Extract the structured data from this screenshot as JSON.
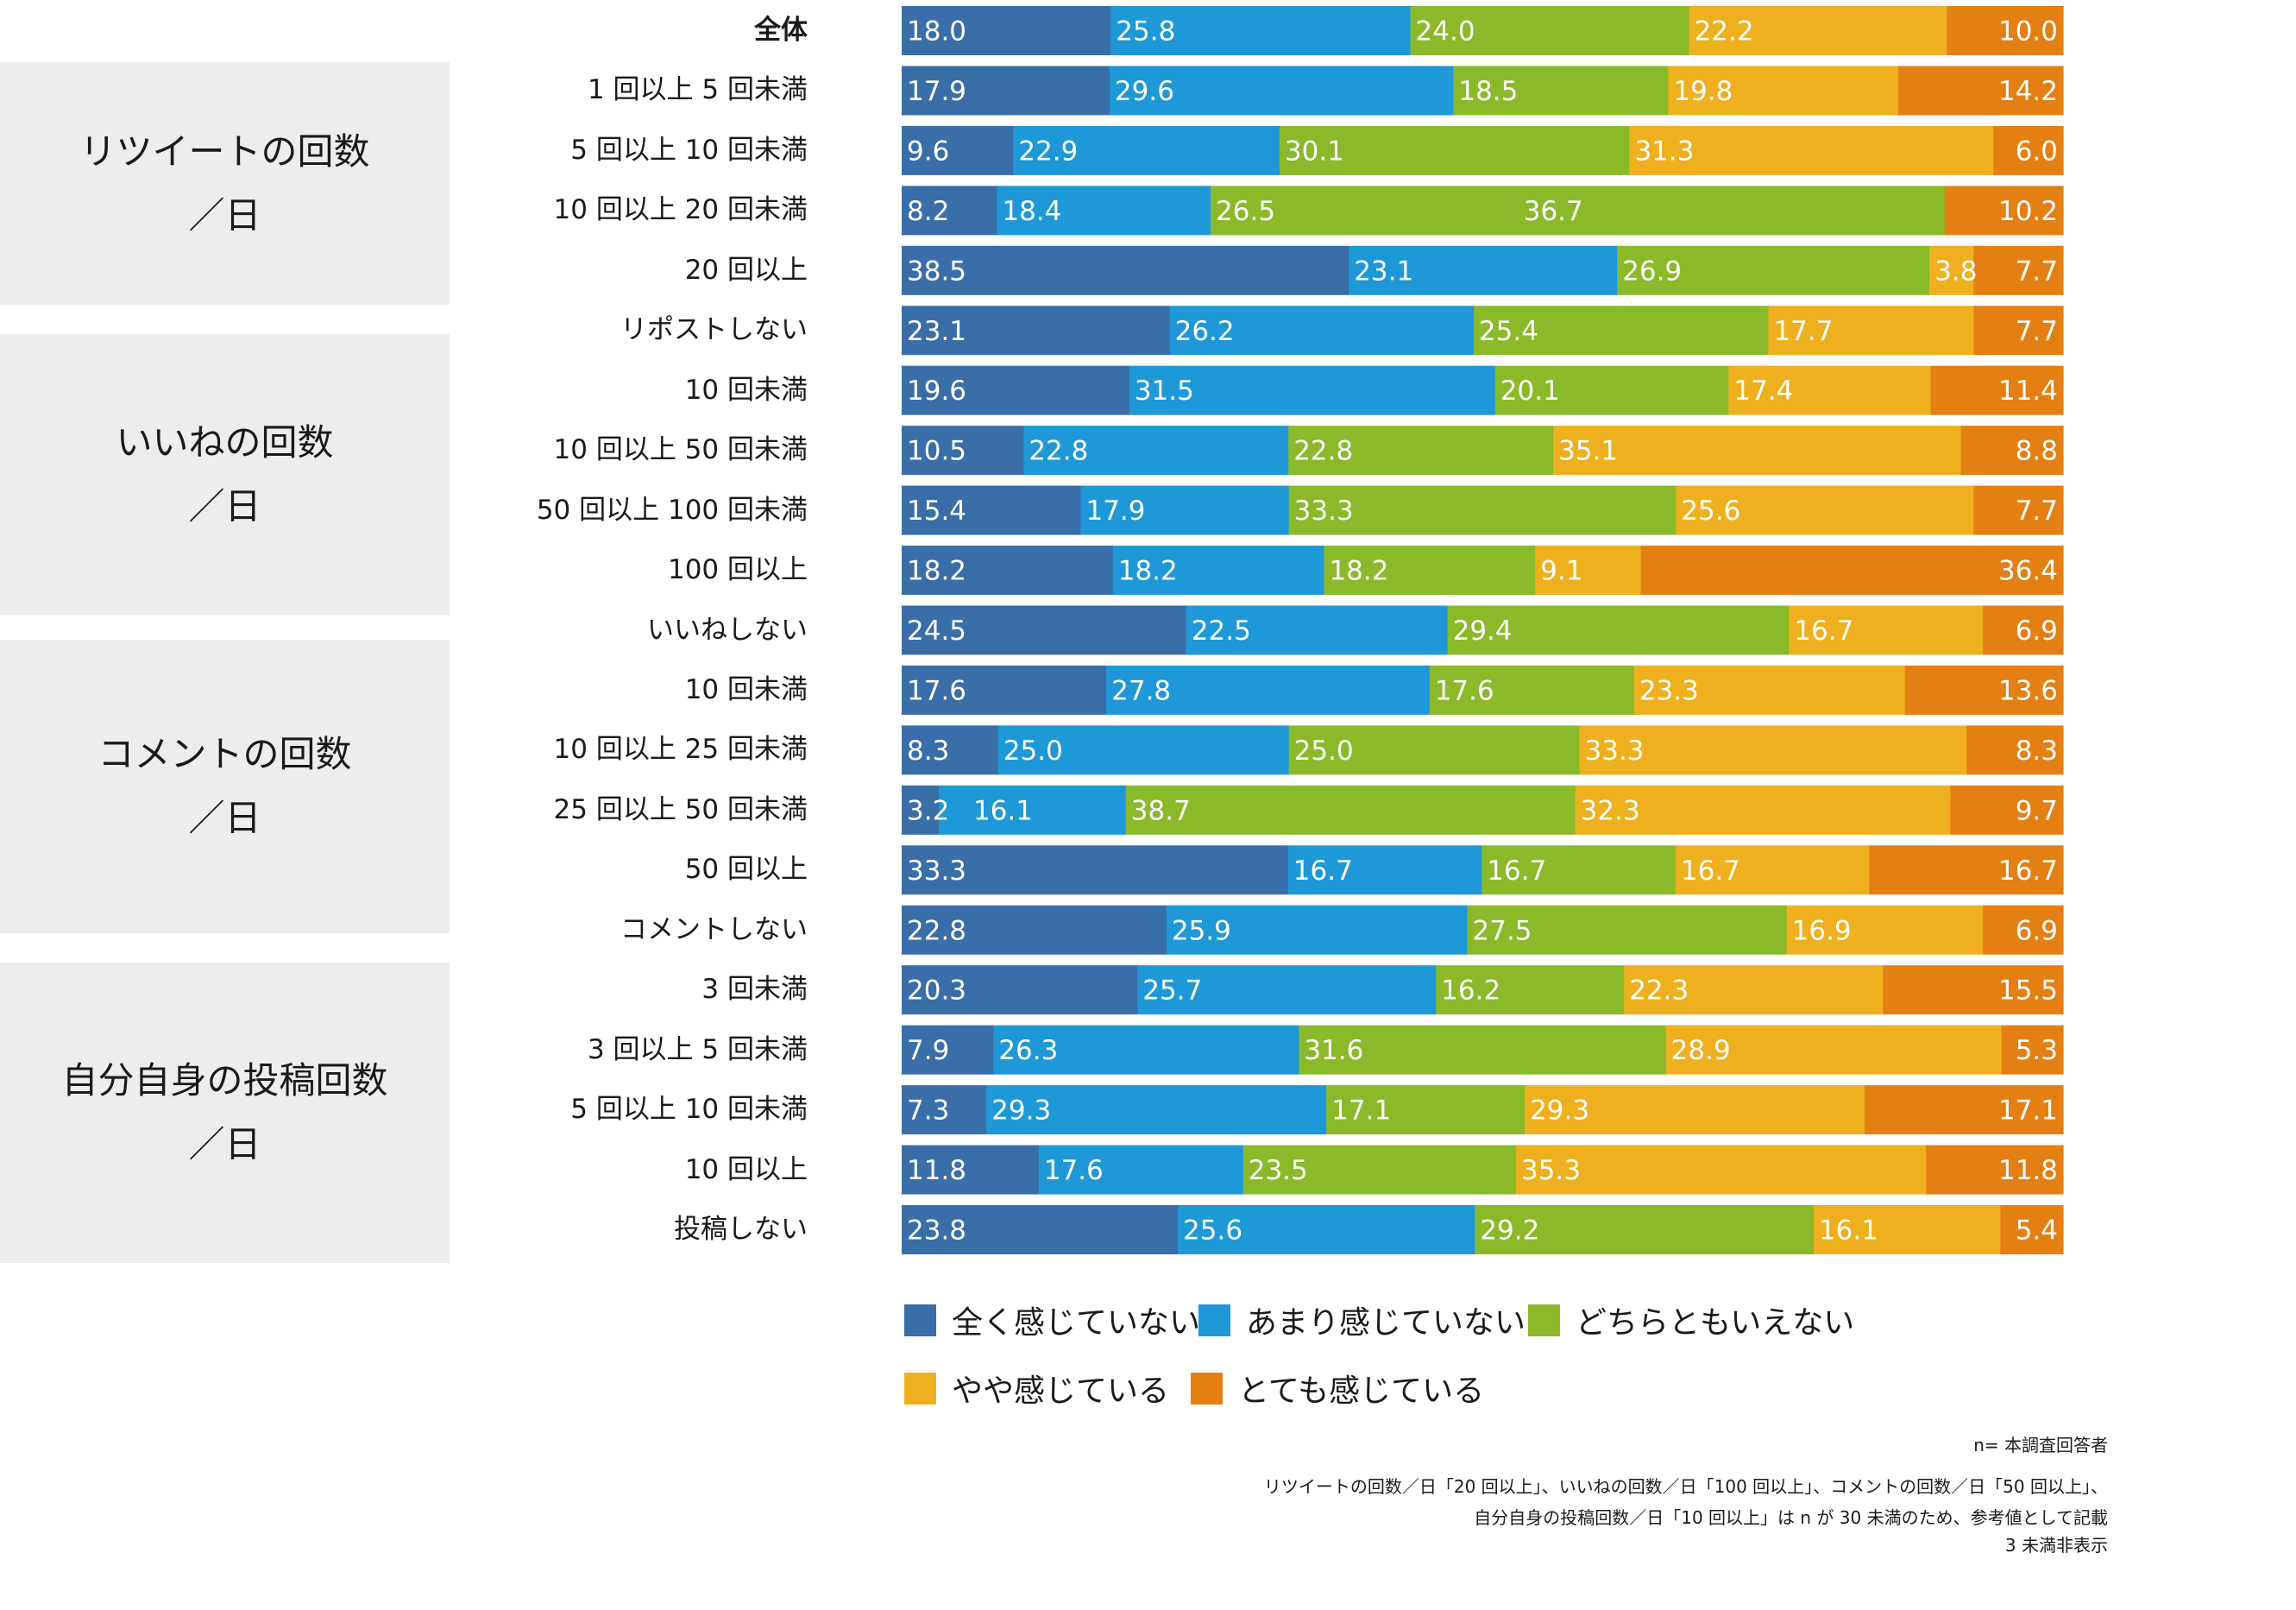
{
  "chart_data": {
    "type": "bar",
    "orientation": "horizontal",
    "stacked": true,
    "xlim": [
      0,
      100
    ],
    "categories": [
      "全体",
      "1 回以上 5 回未満",
      "5 回以上 10 回未満",
      "10 回以上 20 回未満",
      "20 回以上",
      "リポストしない",
      "10 回未満",
      "10 回以上 50 回未満",
      "50 回以上 100 回未満",
      "100 回以上",
      "いいねしない",
      "10 回未満",
      "10 回以上 25 回未満",
      "25 回以上 50 回未満",
      "50 回以上",
      "コメントしない",
      "3 回未満",
      "3 回以上 5 回未満",
      "5 回以上 10 回未満",
      "10 回以上",
      "投稿しない"
    ],
    "groups": [
      {
        "title_line1": "リツイートの回数",
        "title_line2": "／日",
        "rows": [
          1,
          2,
          3,
          4,
          5
        ]
      },
      {
        "title_line1": "いいねの回数",
        "title_line2": "／日",
        "rows": [
          6,
          7,
          8,
          9,
          10
        ]
      },
      {
        "title_line1": "コメントの回数",
        "title_line2": "／日",
        "rows": [
          11,
          12,
          13,
          14,
          15
        ]
      },
      {
        "title_line1": "自分自身の投稿回数",
        "title_line2": "／日",
        "rows": [
          16,
          17,
          18,
          19,
          20
        ]
      }
    ],
    "series": [
      {
        "name": "全く感じていない",
        "color": "#3a6ea8",
        "values": [
          18.0,
          17.9,
          9.6,
          8.2,
          38.5,
          23.1,
          19.6,
          10.5,
          15.4,
          18.2,
          24.5,
          17.6,
          8.3,
          3.2,
          33.3,
          22.8,
          20.3,
          7.9,
          7.3,
          11.8,
          23.8
        ]
      },
      {
        "name": "あまり感じていない",
        "color": "#1e98d6",
        "values": [
          25.8,
          29.6,
          22.9,
          18.4,
          23.1,
          26.2,
          31.5,
          22.8,
          17.9,
          18.2,
          22.5,
          27.8,
          25.0,
          16.1,
          16.7,
          25.9,
          25.7,
          26.3,
          29.3,
          17.6,
          25.6
        ]
      },
      {
        "name": "どちらともいえない",
        "color": "#8ab92a",
        "values": [
          24.0,
          18.5,
          30.1,
          26.5,
          26.9,
          25.4,
          20.1,
          22.8,
          33.3,
          18.2,
          29.4,
          17.6,
          25.0,
          38.7,
          16.7,
          27.5,
          16.2,
          31.6,
          17.1,
          23.5,
          29.2
        ]
      },
      {
        "name": "やや感じている",
        "color": "#eeb01e",
        "values": [
          22.2,
          19.8,
          31.3,
          36.7,
          3.8,
          17.7,
          17.4,
          35.1,
          25.6,
          9.1,
          16.7,
          23.3,
          33.3,
          32.3,
          16.7,
          16.9,
          22.3,
          28.9,
          29.3,
          35.3,
          16.1
        ]
      },
      {
        "name": "とても感じている",
        "color": "#e47f14",
        "values": [
          10.0,
          14.2,
          6.0,
          10.2,
          7.7,
          7.7,
          11.4,
          8.8,
          7.7,
          36.4,
          6.9,
          13.6,
          8.3,
          9.7,
          16.7,
          6.9,
          15.5,
          5.3,
          17.1,
          11.8,
          5.4
        ]
      }
    ],
    "segment_color_overrides": [
      {
        "row": 3,
        "series": 3,
        "color": "#8ab92a"
      }
    ],
    "legend_position": "bottom-left",
    "grid": false
  },
  "notes": {
    "n": "n= 本調査回答者",
    "line1": "リツイートの回数／日「20 回以上」、いいねの回数／日「100 回以上」、コメントの回数／日「50 回以上」、",
    "line2": "自分自身の投稿回数／日「10 回以上」は n が 30 未満のため、参考値として記載",
    "line3": "3 未満非表示"
  }
}
